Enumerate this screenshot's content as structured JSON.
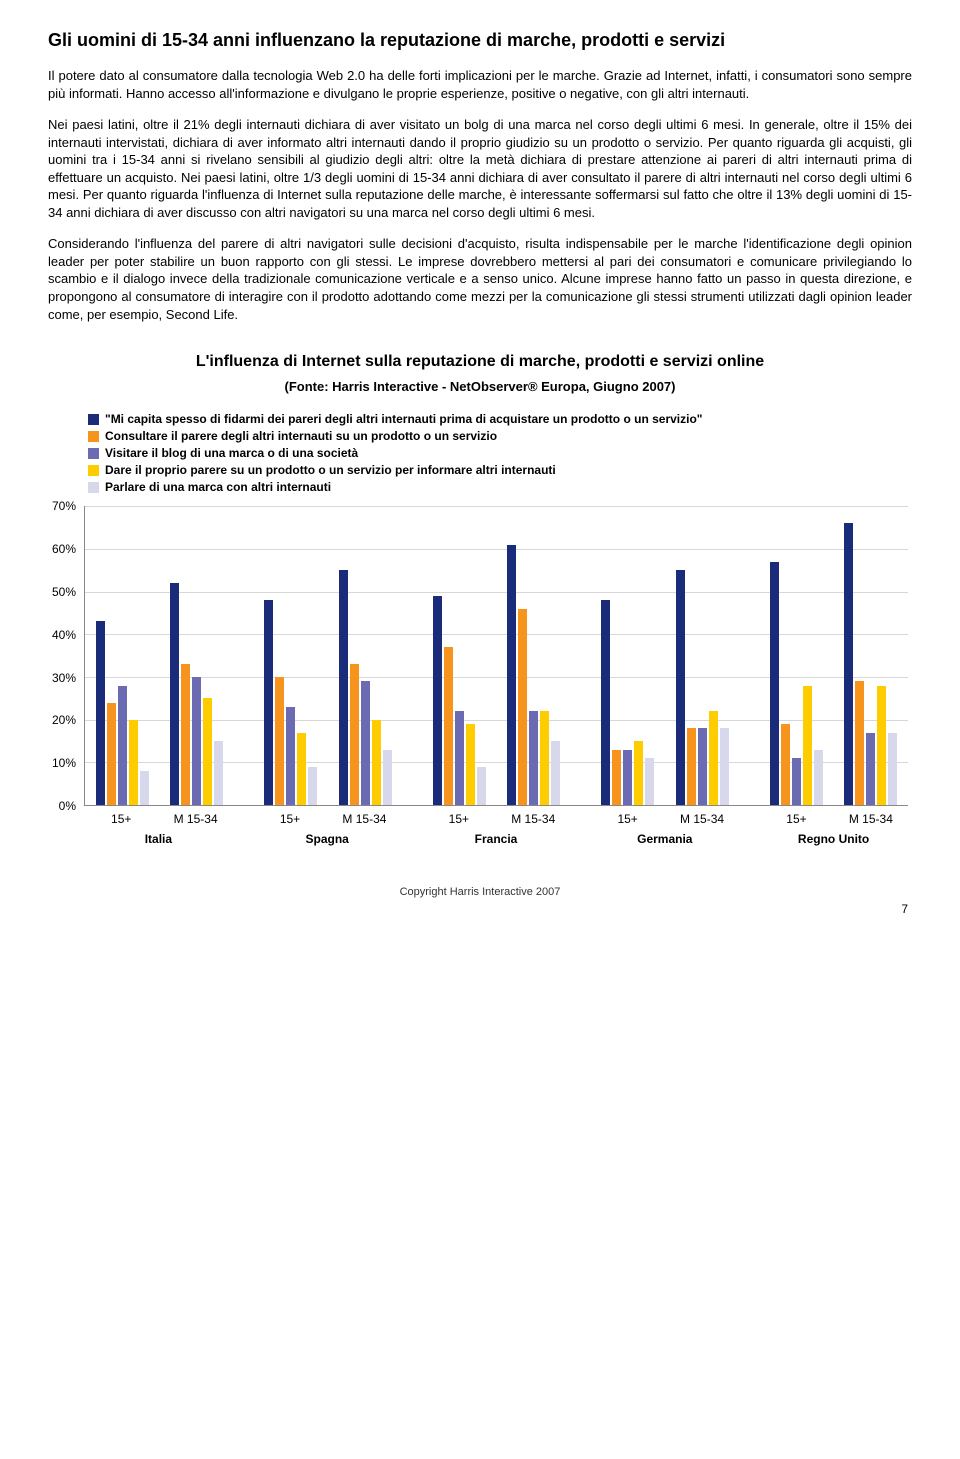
{
  "title": "Gli uomini di 15-34 anni influenzano la reputazione di marche, prodotti e servizi",
  "paragraphs": [
    "Il potere dato al consumatore dalla tecnologia Web 2.0 ha delle forti implicazioni per le marche. Grazie ad Internet, infatti, i consumatori sono sempre più informati. Hanno accesso all'informazione e divulgano le proprie esperienze, positive o negative, con gli altri internauti.",
    "Nei paesi latini, oltre il 21% degli internauti dichiara di aver visitato un bolg di una marca nel corso degli ultimi 6 mesi. In generale, oltre il 15% dei internauti intervistati, dichiara di aver informato altri internauti dando il proprio giudizio su un prodotto o servizio.\nPer quanto riguarda gli acquisti, gli uomini tra i 15-34 anni si rivelano sensibili al giudizio degli altri: oltre la metà dichiara di prestare attenzione ai pareri di altri internauti prima di effettuare un acquisto. Nei paesi latini, oltre 1/3 degli uomini di 15-34 anni dichiara di aver consultato il parere di altri internauti nel corso degli ultimi 6 mesi.\nPer quanto riguarda l'influenza di Internet sulla reputazione delle marche, è interessante soffermarsi sul fatto che oltre il 13% degli uomini di 15-34 anni dichiara di aver discusso con altri navigatori su una marca nel corso degli ultimi 6 mesi.",
    "Considerando l'influenza del parere di altri navigatori sulle decisioni d'acquisto, risulta indispensabile per le marche l'identificazione degli opinion leader per poter stabilire un buon rapporto con gli stessi. Le imprese dovrebbero mettersi al pari dei consumatori e comunicare privilegiando lo scambio e il dialogo invece della tradizionale comunicazione verticale e a senso unico.\nAlcune imprese hanno fatto un passo in questa direzione, e propongono al consumatore di interagire con il prodotto adottando come mezzi per la comunicazione gli stessi strumenti utilizzati dagli opinion leader come, per esempio, Second Life."
  ],
  "chart": {
    "title": "L'influenza di Internet sulla reputazione di marche, prodotti e servizi online",
    "subtitle": "(Fonte: Harris Interactive - NetObserver® Europa, Giugno 2007)",
    "series": [
      {
        "label": "\"Mi capita spesso di fidarmi dei pareri degli altri internauti prima di acquistare un prodotto o un servizio\"",
        "color": "#1a2b7a"
      },
      {
        "label": "Consultare il parere degli altri internauti su un prodotto o un servizio",
        "color": "#f7941d"
      },
      {
        "label": "Visitare il blog di una marca o di una società",
        "color": "#6b6bb3"
      },
      {
        "label": "Dare il proprio parere su un prodotto o un servizio per informare altri internauti",
        "color": "#ffcc00"
      },
      {
        "label": "Parlare di una marca con altri internauti",
        "color": "#d8d8ec"
      }
    ],
    "ymax": 70,
    "ytick_step": 10,
    "yformat": "%",
    "countries": [
      "Italia",
      "Spagna",
      "Francia",
      "Germania",
      "Regno Unito"
    ],
    "categories": [
      "15+",
      "M 15-34",
      "15+",
      "M 15-34",
      "15+",
      "M 15-34",
      "15+",
      "M 15-34",
      "15+",
      "M 15-34"
    ],
    "values": [
      [
        43,
        24,
        28,
        20,
        8
      ],
      [
        52,
        33,
        30,
        25,
        15
      ],
      [
        48,
        30,
        23,
        17,
        9
      ],
      [
        55,
        33,
        29,
        20,
        13
      ],
      [
        49,
        37,
        22,
        19,
        9
      ],
      [
        61,
        46,
        22,
        22,
        15
      ],
      [
        48,
        13,
        13,
        15,
        11
      ],
      [
        55,
        18,
        18,
        22,
        18
      ],
      [
        57,
        19,
        11,
        28,
        13
      ],
      [
        66,
        29,
        17,
        28,
        17
      ]
    ],
    "gridline_color": "#d8d8d8",
    "axis_color": "#888888",
    "background": "#ffffff"
  },
  "footer": "Copyright Harris Interactive 2007",
  "page_number": "7"
}
